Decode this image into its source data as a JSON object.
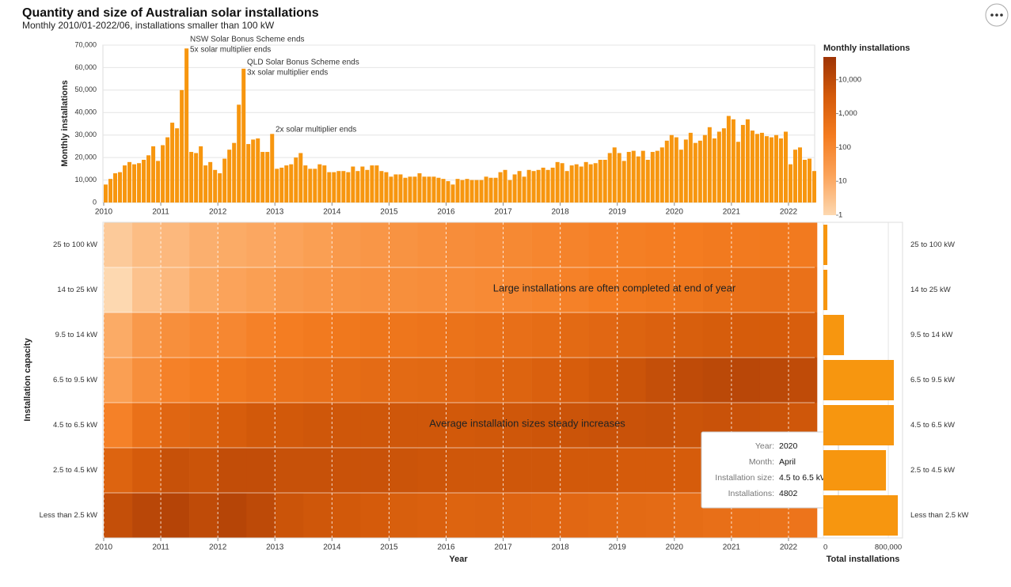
{
  "header": {
    "title": "Quantity and size of Australian solar installations",
    "subtitle": "Monthly 2010/01-2022/06, installations smaller than 100 kW"
  },
  "chart_data": [
    {
      "type": "bar",
      "y_label": "Monthly installations",
      "color": "#f7960f",
      "years": [
        2010,
        2011,
        2012,
        2013,
        2014,
        2015,
        2016,
        2017,
        2018,
        2019,
        2020,
        2021,
        2022
      ],
      "values": [
        [
          8000,
          10500,
          13000,
          13500,
          16500,
          18000,
          17000,
          17500,
          19000,
          21000,
          25000,
          18500
        ],
        [
          25500,
          29000,
          35500,
          33000,
          50000,
          68500,
          22500,
          22000,
          25000,
          16500,
          18000,
          14500
        ],
        [
          13000,
          19500,
          23500,
          26500,
          43500,
          59500,
          26000,
          28000,
          28500,
          22500,
          22500,
          30500
        ],
        [
          15000,
          15500,
          16500,
          17000,
          20000,
          22000,
          16500,
          15000,
          15000,
          17000,
          16500,
          13500
        ],
        [
          13500,
          14000,
          14000,
          13500,
          16000,
          14000,
          16000,
          14500,
          16500,
          16500,
          14000,
          13500
        ],
        [
          11500,
          12500,
          12500,
          11000,
          11500,
          11500,
          13000,
          11500,
          11500,
          11500,
          11000,
          10500
        ],
        [
          9500,
          8000,
          10500,
          10000,
          10500,
          10000,
          10000,
          10000,
          11500,
          11000,
          11000,
          13500
        ],
        [
          14500,
          10000,
          12500,
          14000,
          11500,
          14500,
          14000,
          14500,
          15500,
          14500,
          15500,
          18000
        ],
        [
          17500,
          14000,
          16500,
          17000,
          16000,
          18000,
          17000,
          17500,
          19000,
          19000,
          22000,
          24500
        ],
        [
          22000,
          18500,
          22500,
          23000,
          20500,
          23000,
          19000,
          22500,
          23000,
          24500,
          27500,
          30000
        ],
        [
          29000,
          23500,
          28000,
          31000,
          26500,
          27500,
          30000,
          33500,
          28500,
          31500,
          33000,
          38500
        ],
        [
          37000,
          27000,
          34500,
          37000,
          32000,
          30500,
          31000,
          29500,
          29000,
          30000,
          28500,
          31500
        ],
        [
          17000,
          23500,
          24500,
          19000,
          19500,
          14000
        ]
      ],
      "xlim": [
        2010,
        2022.5
      ],
      "xticks": [
        2010,
        2011,
        2012,
        2013,
        2014,
        2015,
        2016,
        2017,
        2018,
        2019,
        2020,
        2021,
        2022
      ],
      "ylim": [
        0,
        70000
      ],
      "yticks": [
        0,
        {
          "value": 10000,
          "label": "10,000"
        },
        {
          "value": 20000,
          "label": "20,000"
        },
        {
          "value": 30000,
          "label": "30,000"
        },
        {
          "value": 40000,
          "label": "40,000"
        },
        {
          "value": 50000,
          "label": "50,000"
        },
        {
          "value": 60000,
          "label": "60,000"
        },
        {
          "value": 70000,
          "label": "70,000"
        }
      ],
      "grid": true,
      "annotations": [
        [
          "NSW Solar Bonus Scheme ends",
          "5x solar multiplier ends"
        ],
        [
          "QLD Solar Bonus Scheme ends",
          "3x solar multiplier ends"
        ],
        [
          "2x solar multiplier ends"
        ]
      ]
    },
    {
      "type": "heatmap",
      "x_label": "Year",
      "y_label": "Installation capacity",
      "categories": [
        "25 to 100 kW",
        "14 to 25 kW",
        "9.5 to 14 kW",
        "6.5 to 9.5 kW",
        "4.5 to 6.5 kW",
        "2.5 to 4.5 kW",
        "Less than 2.5 kW"
      ],
      "years": [
        2010,
        2011,
        2012,
        2013,
        2014,
        2015,
        2016,
        2017,
        2018,
        2019,
        2020,
        2021,
        2022
      ],
      "values": [
        [
          [
            2,
            4
          ],
          [
            5,
            8
          ],
          [
            10,
            12
          ],
          [
            15,
            20
          ],
          [
            30,
            35
          ],
          [
            45,
            55
          ],
          [
            65,
            75
          ],
          [
            90,
            110
          ],
          [
            130,
            160
          ],
          [
            180,
            200
          ],
          [
            220,
            250
          ],
          [
            250,
            280
          ],
          [
            260
          ]
        ],
        [
          [
            1,
            3
          ],
          [
            5,
            10
          ],
          [
            15,
            20
          ],
          [
            30,
            35
          ],
          [
            45,
            50
          ],
          [
            60,
            65
          ],
          [
            70,
            80
          ],
          [
            100,
            120
          ],
          [
            150,
            200
          ],
          [
            250,
            300
          ],
          [
            350,
            450
          ],
          [
            550,
            600
          ],
          [
            500
          ]
        ],
        [
          [
            10,
            30
          ],
          [
            60,
            80
          ],
          [
            100,
            150
          ],
          [
            200,
            250
          ],
          [
            300,
            350
          ],
          [
            350,
            400
          ],
          [
            450,
            500
          ],
          [
            600,
            700
          ],
          [
            900,
            1100
          ],
          [
            1500,
            1800
          ],
          [
            2200,
            2600
          ],
          [
            2800,
            2700
          ],
          [
            2300
          ]
        ],
        [
          [
            20,
            60
          ],
          [
            150,
            200
          ],
          [
            300,
            400
          ],
          [
            500,
            600
          ],
          [
            700,
            800
          ],
          [
            900,
            1000
          ],
          [
            1100,
            1300
          ],
          [
            1500,
            2000
          ],
          [
            2500,
            3500
          ],
          [
            5000,
            7000
          ],
          [
            9000,
            11000
          ],
          [
            12000,
            11000
          ],
          [
            9000
          ]
        ],
        [
          [
            150,
            500
          ],
          [
            1200,
            1500
          ],
          [
            2500,
            3500
          ],
          [
            3500,
            4000
          ],
          [
            4000,
            4000
          ],
          [
            4000,
            4000
          ],
          [
            3500,
            3800
          ],
          [
            4000,
            4500
          ],
          [
            5000,
            5500
          ],
          [
            5500,
            6000
          ],
          [
            5000,
            5500
          ],
          [
            5500,
            5000
          ],
          [
            4000
          ]
        ],
        [
          [
            1500,
            3000
          ],
          [
            6000,
            5000
          ],
          [
            8000,
            8000
          ],
          [
            6000,
            6000
          ],
          [
            5500,
            5500
          ],
          [
            5000,
            4500
          ],
          [
            4000,
            4000
          ],
          [
            4000,
            4000
          ],
          [
            3500,
            3500
          ],
          [
            3000,
            3000
          ],
          [
            2800,
            2800
          ],
          [
            2500,
            2300
          ],
          [
            1800
          ]
        ],
        [
          [
            7000,
            12000
          ],
          [
            15000,
            9000
          ],
          [
            14000,
            10000
          ],
          [
            5000,
            4000
          ],
          [
            3500,
            3000
          ],
          [
            2200,
            2000
          ],
          [
            1500,
            1600
          ],
          [
            1400,
            1300
          ],
          [
            1100,
            1000
          ],
          [
            900,
            800
          ],
          [
            700,
            600
          ],
          [
            500,
            450
          ],
          [
            400
          ]
        ]
      ],
      "xlim": [
        2010,
        2022.5
      ],
      "xticks": [
        2010,
        2011,
        2012,
        2013,
        2014,
        2015,
        2016,
        2017,
        2018,
        2019,
        2020,
        2021,
        2022
      ],
      "legend_title": "Monthly installations",
      "legend_lim": [
        1,
        47000
      ],
      "legend_ticks": [
        1,
        10,
        100,
        {
          "value": 1000,
          "label": "1,000"
        },
        {
          "value": 10000,
          "label": "10,000"
        }
      ],
      "colors": [
        "#fdd8b0",
        "#fba35a",
        "#f47c20",
        "#d45a0a",
        "#9e3405"
      ],
      "annotations": [
        "Large installations are often completed at end of year",
        "Average installation sizes steady increases"
      ],
      "tooltip": {
        "labels": [
          "Year:",
          "Month:",
          "Installation size:",
          "Installations:"
        ],
        "values": [
          2020,
          "April",
          "4.5 to 6.5 kW",
          4802
        ]
      }
    },
    {
      "type": "hbar",
      "x_label": "Total installations",
      "color": "#f7960f",
      "categories": [
        "25 to 100 kW",
        "14 to 25 kW",
        "9.5 to 14 kW",
        "6.5 to 9.5 kW",
        "4.5 to 6.5 kW",
        "2.5 to 4.5 kW",
        "Less than 2.5 kW"
      ],
      "values": [
        49000,
        49000,
        254000,
        868000,
        868000,
        771000,
        917000
      ],
      "xlim": [
        0,
        975000
      ],
      "xticks": [
        0,
        {
          "value": 800000,
          "label": "800,000"
        }
      ]
    }
  ]
}
